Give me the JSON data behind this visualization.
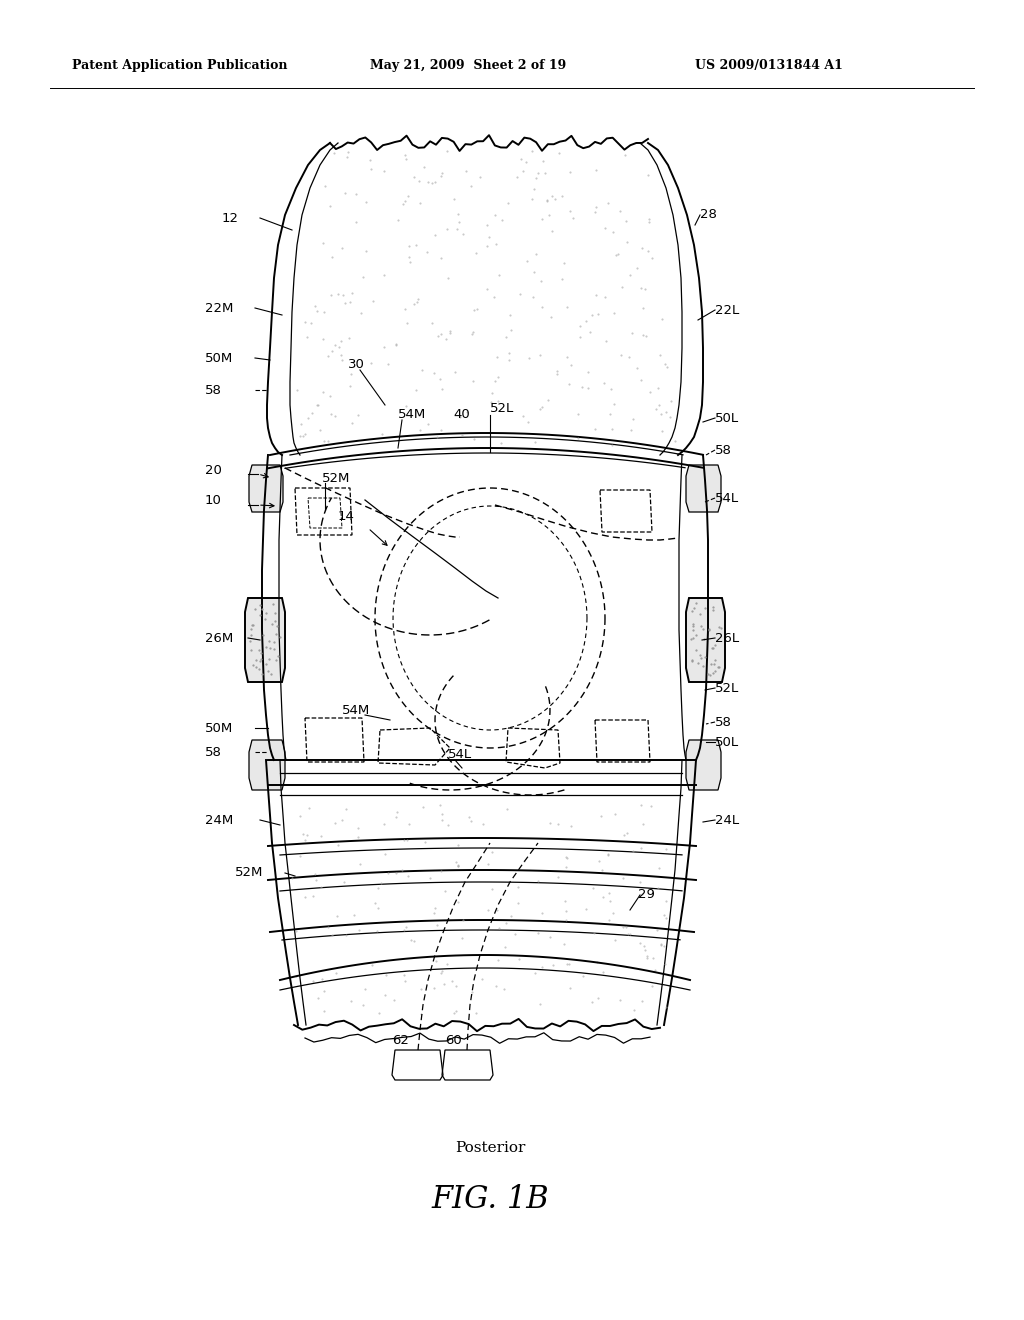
{
  "header_left": "Patent Application Publication",
  "header_center": "May 21, 2009  Sheet 2 of 19",
  "header_right": "US 2009/0131844 A1",
  "fig_label": "FIG. 1B",
  "fig_sublabel": "Posterior",
  "bg_color": "#ffffff"
}
